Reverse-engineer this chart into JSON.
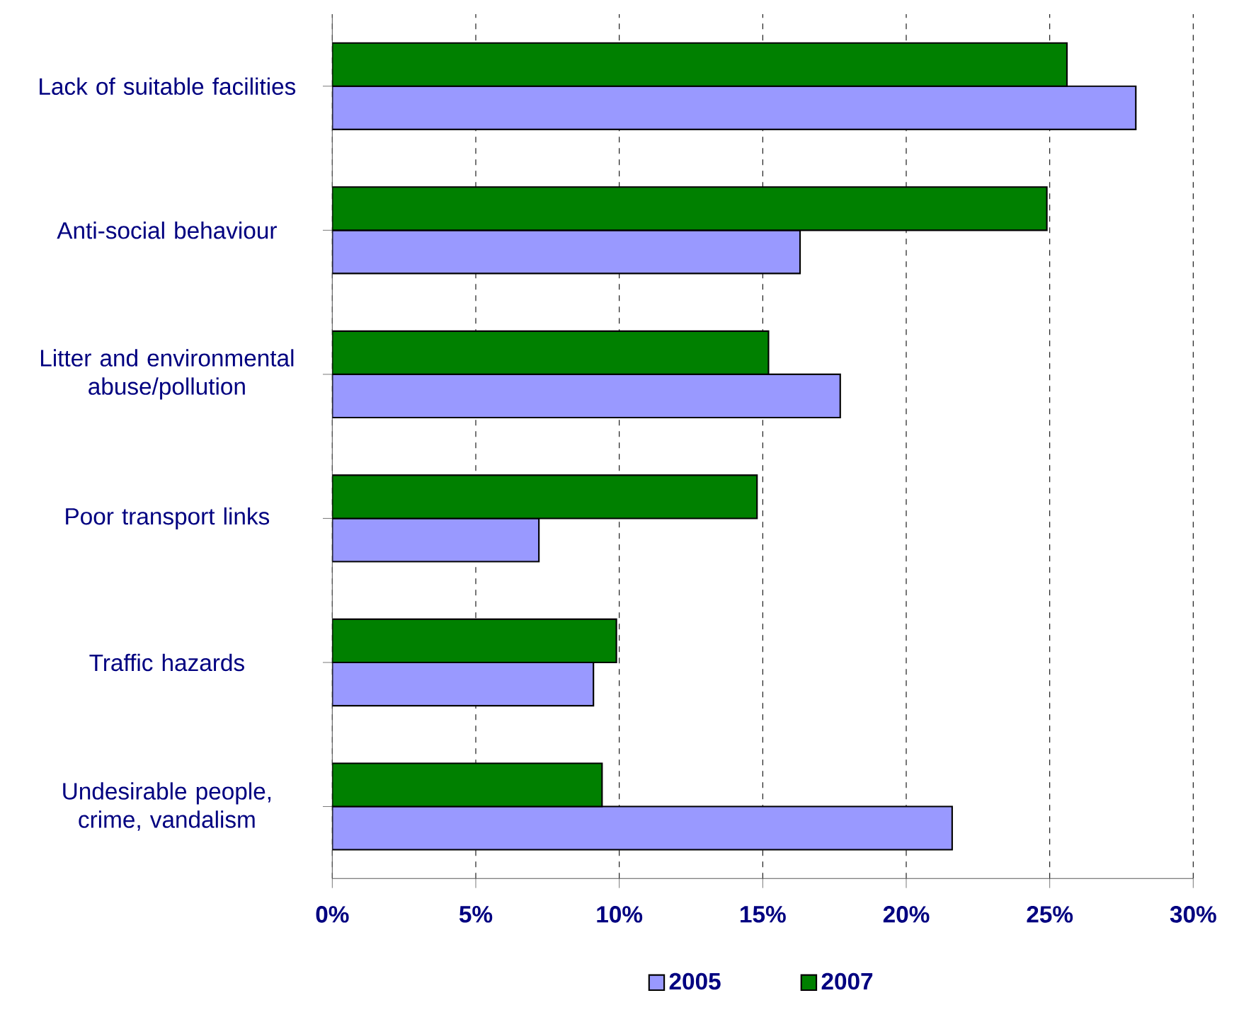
{
  "chart_data": {
    "type": "bar",
    "orientation": "horizontal",
    "categories": [
      "Lack of suitable facilities",
      "Anti-social behaviour",
      "Litter and environmental abuse/pollution",
      "Poor transport links",
      "Traffic hazards",
      "Undesirable people, crime, vandalism"
    ],
    "series": [
      {
        "name": "2005",
        "color": "#9999ff",
        "values": [
          28.0,
          16.3,
          17.7,
          7.2,
          9.1,
          21.6
        ]
      },
      {
        "name": "2007",
        "color": "#008000",
        "values": [
          25.6,
          24.9,
          15.2,
          14.8,
          9.9,
          9.4
        ]
      }
    ],
    "xlim": [
      0,
      30
    ],
    "xticks": [
      {
        "value": 0,
        "label": "0%"
      },
      {
        "value": 5,
        "label": "5%"
      },
      {
        "value": 10,
        "label": "10%"
      },
      {
        "value": 15,
        "label": "15%"
      },
      {
        "value": 20,
        "label": "20%"
      },
      {
        "value": 25,
        "label": "25%"
      },
      {
        "value": 30,
        "label": "30%"
      }
    ],
    "grid": "x",
    "legend": "bottom"
  }
}
